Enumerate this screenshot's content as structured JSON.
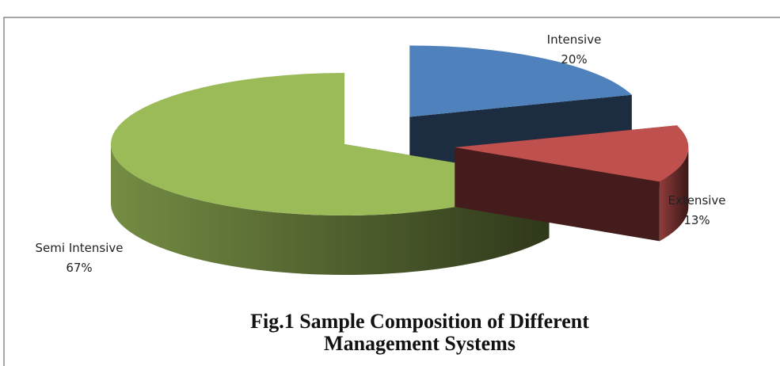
{
  "chart_data": {
    "type": "pie",
    "title": "Fig.1 Sample Composition of Different Management Systems",
    "categories": [
      "Intensive",
      "Extensive",
      "Semi Intensive"
    ],
    "values": [
      20,
      13,
      67
    ],
    "value_labels": [
      "20%",
      "13%",
      "67%"
    ],
    "colors": [
      "#4f81bd",
      "#c0504d",
      "#9bbb59"
    ]
  }
}
